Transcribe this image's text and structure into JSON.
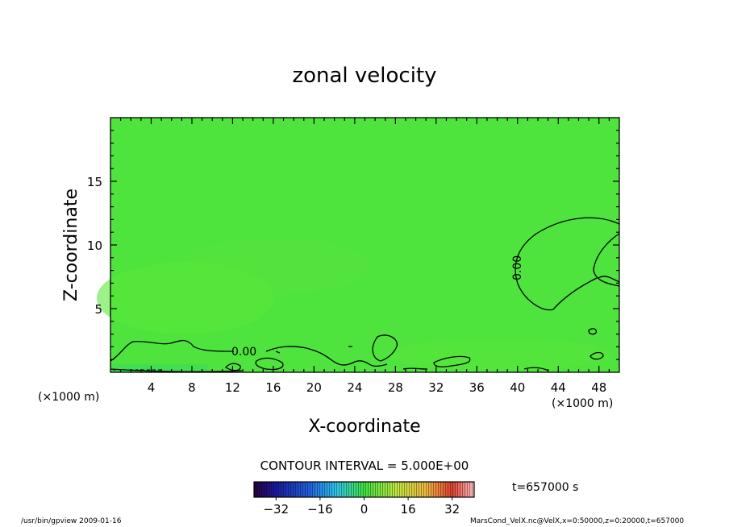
{
  "chart_data": {
    "type": "heatmap",
    "title": "zonal velocity",
    "xlabel": "X-coordinate",
    "ylabel": "Z-coordinate",
    "x_unit_left": "(×1000 m)",
    "x_unit_right": "(×1000 m)",
    "xlim": [
      0,
      50
    ],
    "ylim": [
      0,
      20
    ],
    "x_ticks": [
      4,
      8,
      12,
      16,
      20,
      24,
      28,
      32,
      36,
      40,
      44,
      48
    ],
    "y_ticks": [
      5,
      10,
      15
    ],
    "background_color": "#4ee33d",
    "contour_label": "0.00",
    "contour_interval_text": "CONTOUR INTERVAL = 5.000E+00",
    "time_text": "t=657000 s",
    "colorbar": {
      "min": -40,
      "max": 40,
      "ticks": [
        -32,
        -16,
        0,
        16,
        32
      ]
    }
  },
  "footer": {
    "left": "/usr/bin/gpview  2009-01-16",
    "right": "MarsCond_VelX.nc@VelX,x=0:50000,z=0:20000,t=657000"
  }
}
